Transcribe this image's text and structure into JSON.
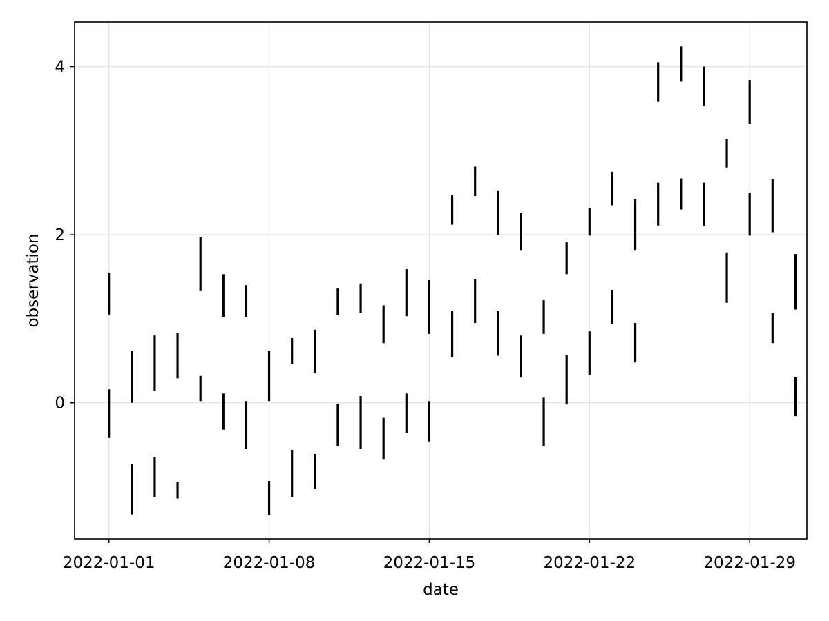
{
  "chart_data": {
    "type": "rangebars",
    "xlabel": "date",
    "ylabel": "observation",
    "x_ticks": [
      "2022-01-01",
      "2022-01-08",
      "2022-01-15",
      "2022-01-22",
      "2022-01-29"
    ],
    "y_ticks": [
      0,
      2,
      4
    ],
    "xlim": [
      "2021-12-30T12:00",
      "2022-01-31T12:00"
    ],
    "ylim": [
      -1.62,
      4.53
    ],
    "grid": true,
    "color": "#000000",
    "series": [
      {
        "values": [
          {
            "x": "2022-01-01",
            "low": 1.05,
            "high": 1.55
          },
          {
            "x": "2022-01-02",
            "low": 0.0,
            "high": 0.62
          },
          {
            "x": "2022-01-03",
            "low": 0.14,
            "high": 0.8
          },
          {
            "x": "2022-01-04",
            "low": 0.29,
            "high": 0.83
          },
          {
            "x": "2022-01-05",
            "low": 1.33,
            "high": 1.97
          },
          {
            "x": "2022-01-06",
            "low": 1.02,
            "high": 1.53
          },
          {
            "x": "2022-01-07",
            "low": 1.02,
            "high": 1.4
          },
          {
            "x": "2022-01-08",
            "low": 0.02,
            "high": 0.62
          },
          {
            "x": "2022-01-09",
            "low": 0.46,
            "high": 0.77
          },
          {
            "x": "2022-01-10",
            "low": 0.35,
            "high": 0.87
          },
          {
            "x": "2022-01-11",
            "low": 1.04,
            "high": 1.36
          },
          {
            "x": "2022-01-12",
            "low": 1.07,
            "high": 1.42
          },
          {
            "x": "2022-01-13",
            "low": 0.71,
            "high": 1.16
          },
          {
            "x": "2022-01-14",
            "low": 1.03,
            "high": 1.59
          },
          {
            "x": "2022-01-15",
            "low": 0.82,
            "high": 1.46
          },
          {
            "x": "2022-01-16",
            "low": 2.12,
            "high": 2.47
          },
          {
            "x": "2022-01-17",
            "low": 2.46,
            "high": 2.81
          },
          {
            "x": "2022-01-18",
            "low": 2.0,
            "high": 2.52
          },
          {
            "x": "2022-01-19",
            "low": 1.81,
            "high": 2.26
          },
          {
            "x": "2022-01-20",
            "low": 0.82,
            "high": 1.22
          },
          {
            "x": "2022-01-21",
            "low": 1.53,
            "high": 1.91
          },
          {
            "x": "2022-01-22",
            "low": 1.99,
            "high": 2.32
          },
          {
            "x": "2022-01-23",
            "low": 2.35,
            "high": 2.75
          },
          {
            "x": "2022-01-24",
            "low": 1.81,
            "high": 2.42
          },
          {
            "x": "2022-01-25",
            "low": 3.58,
            "high": 4.05
          },
          {
            "x": "2022-01-26",
            "low": 3.82,
            "high": 4.24
          },
          {
            "x": "2022-01-27",
            "low": 3.53,
            "high": 4.0
          },
          {
            "x": "2022-01-28",
            "low": 2.8,
            "high": 3.14
          },
          {
            "x": "2022-01-29",
            "low": 3.32,
            "high": 3.84
          },
          {
            "x": "2022-01-30",
            "low": 2.03,
            "high": 2.66
          },
          {
            "x": "2022-01-31",
            "low": 1.11,
            "high": 1.77
          }
        ]
      },
      {
        "values": [
          {
            "x": "2022-01-01",
            "low": -0.42,
            "high": 0.16
          },
          {
            "x": "2022-01-02",
            "low": -1.33,
            "high": -0.73
          },
          {
            "x": "2022-01-03",
            "low": -1.12,
            "high": -0.65
          },
          {
            "x": "2022-01-04",
            "low": -1.14,
            "high": -0.94
          },
          {
            "x": "2022-01-05",
            "low": 0.02,
            "high": 0.32
          },
          {
            "x": "2022-01-06",
            "low": -0.32,
            "high": 0.11
          },
          {
            "x": "2022-01-07",
            "low": -0.55,
            "high": 0.02
          },
          {
            "x": "2022-01-08",
            "low": -1.34,
            "high": -0.93
          },
          {
            "x": "2022-01-09",
            "low": -1.12,
            "high": -0.56
          },
          {
            "x": "2022-01-10",
            "low": -1.02,
            "high": -0.61
          },
          {
            "x": "2022-01-11",
            "low": -0.52,
            "high": -0.01
          },
          {
            "x": "2022-01-12",
            "low": -0.55,
            "high": 0.08
          },
          {
            "x": "2022-01-13",
            "low": -0.67,
            "high": -0.18
          },
          {
            "x": "2022-01-14",
            "low": -0.36,
            "high": 0.11
          },
          {
            "x": "2022-01-15",
            "low": -0.46,
            "high": 0.02
          },
          {
            "x": "2022-01-16",
            "low": 0.54,
            "high": 1.09
          },
          {
            "x": "2022-01-17",
            "low": 0.95,
            "high": 1.47
          },
          {
            "x": "2022-01-18",
            "low": 0.56,
            "high": 1.09
          },
          {
            "x": "2022-01-19",
            "low": 0.3,
            "high": 0.8
          },
          {
            "x": "2022-01-20",
            "low": -0.52,
            "high": 0.06
          },
          {
            "x": "2022-01-21",
            "low": -0.02,
            "high": 0.57
          },
          {
            "x": "2022-01-22",
            "low": 0.33,
            "high": 0.85
          },
          {
            "x": "2022-01-23",
            "low": 0.94,
            "high": 1.34
          },
          {
            "x": "2022-01-24",
            "low": 0.48,
            "high": 0.95
          },
          {
            "x": "2022-01-25",
            "low": 2.11,
            "high": 2.62
          },
          {
            "x": "2022-01-26",
            "low": 2.3,
            "high": 2.67
          },
          {
            "x": "2022-01-27",
            "low": 2.1,
            "high": 2.62
          },
          {
            "x": "2022-01-28",
            "low": 1.19,
            "high": 1.79
          },
          {
            "x": "2022-01-29",
            "low": 1.99,
            "high": 2.5
          },
          {
            "x": "2022-01-30",
            "low": 0.71,
            "high": 1.07
          },
          {
            "x": "2022-01-31",
            "low": -0.16,
            "high": 0.31
          }
        ]
      }
    ]
  }
}
